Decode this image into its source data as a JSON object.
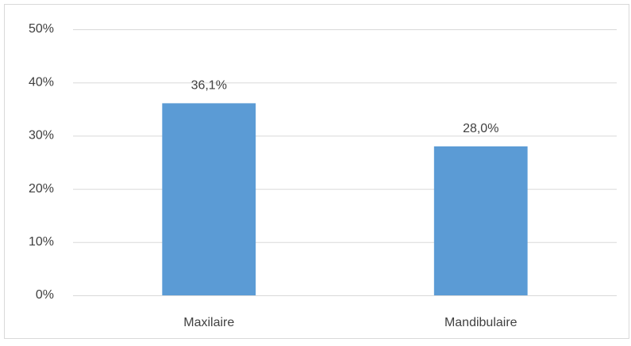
{
  "chart_data": {
    "type": "bar",
    "categories": [
      "Maxilaire",
      "Mandibulaire"
    ],
    "values": [
      36.1,
      28.0
    ],
    "value_labels": [
      "36,1%",
      "28,0%"
    ],
    "color": "#5b9bd5",
    "ylim": [
      0,
      50
    ],
    "yticks": [
      {
        "value": 0,
        "label": "0%"
      },
      {
        "value": 10,
        "label": "10%"
      },
      {
        "value": 20,
        "label": "20%"
      },
      {
        "value": 30,
        "label": "30%"
      },
      {
        "value": 40,
        "label": "40%"
      },
      {
        "value": 50,
        "label": "50%"
      }
    ],
    "grid": true
  }
}
